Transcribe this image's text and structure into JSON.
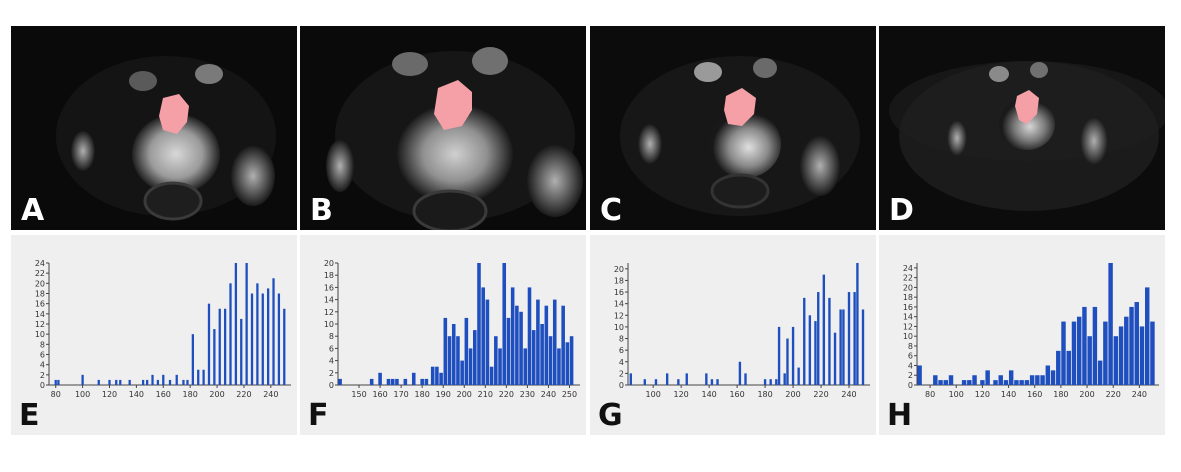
{
  "images": [
    {
      "label": "A"
    },
    {
      "label": "B"
    },
    {
      "label": "C"
    },
    {
      "label": "D"
    }
  ],
  "colors": {
    "roi": "#f4a0a6",
    "bar": "#1f4fbf",
    "hist_bg": "#efefef"
  },
  "chart_data": [
    {
      "type": "bar",
      "label": "E",
      "x": [
        80,
        82,
        100,
        112,
        120,
        125,
        128,
        135,
        145,
        148,
        152,
        156,
        160,
        165,
        170,
        175,
        178,
        182,
        186,
        190,
        194,
        198,
        202,
        206,
        210,
        214,
        218,
        222,
        226,
        230,
        234,
        238,
        242,
        246,
        250
      ],
      "values": [
        1,
        1,
        2,
        1,
        1,
        1,
        1,
        1,
        1,
        1,
        2,
        1,
        2,
        1,
        2,
        1,
        1,
        10,
        3,
        3,
        16,
        11,
        15,
        15,
        20,
        24,
        13,
        24,
        18,
        20,
        18,
        19,
        21,
        18,
        15
      ],
      "xticks": [
        "80",
        "100",
        "120",
        "140",
        "160",
        "180",
        "200",
        "220",
        "240"
      ],
      "xlim": [
        75,
        255
      ],
      "yticks": [
        "0",
        "2",
        "4",
        "6",
        "8",
        "10",
        "12",
        "14",
        "16",
        "18",
        "20",
        "22",
        "24"
      ],
      "ylim": [
        0,
        24
      ]
    },
    {
      "type": "bar",
      "label": "F",
      "x": [
        141,
        156,
        160,
        164,
        166,
        168,
        172,
        176,
        180,
        182,
        185,
        187,
        189,
        191,
        193,
        195,
        197,
        199,
        201,
        203,
        205,
        207,
        209,
        211,
        213,
        215,
        217,
        219,
        221,
        223,
        225,
        227,
        229,
        231,
        233,
        235,
        237,
        239,
        241,
        243,
        245,
        247,
        249,
        251
      ],
      "values": [
        1,
        1,
        2,
        1,
        1,
        1,
        1,
        2,
        1,
        1,
        3,
        3,
        2,
        11,
        8,
        10,
        8,
        4,
        11,
        6,
        9,
        20,
        16,
        14,
        3,
        8,
        6,
        20,
        11,
        16,
        13,
        12,
        6,
        16,
        9,
        14,
        10,
        13,
        8,
        14,
        6,
        13,
        7,
        8
      ],
      "xticks": [
        "150",
        "160",
        "170",
        "180",
        "190",
        "200",
        "210",
        "220",
        "230",
        "240",
        "250"
      ],
      "xlim": [
        140,
        255
      ],
      "yticks": [
        "0",
        "2",
        "4",
        "6",
        "8",
        "10",
        "12",
        "14",
        "16",
        "18",
        "20"
      ],
      "ylim": [
        0,
        20
      ]
    },
    {
      "type": "bar",
      "label": "G",
      "x": [
        84,
        94,
        102,
        110,
        118,
        124,
        138,
        142,
        146,
        162,
        166,
        180,
        184,
        188,
        190,
        194,
        196,
        200,
        204,
        208,
        212,
        216,
        218,
        222,
        226,
        230,
        234,
        236,
        240,
        244,
        246,
        250
      ],
      "values": [
        2,
        1,
        1,
        2,
        1,
        2,
        2,
        1,
        1,
        4,
        2,
        1,
        1,
        1,
        10,
        2,
        8,
        10,
        3,
        15,
        12,
        11,
        16,
        19,
        15,
        9,
        13,
        13,
        16,
        16,
        21,
        13
      ],
      "xticks": [
        "100",
        "120",
        "140",
        "160",
        "180",
        "200",
        "220",
        "240"
      ],
      "xlim": [
        82,
        255
      ],
      "yticks": [
        "0",
        "2",
        "4",
        "6",
        "8",
        "10",
        "12",
        "14",
        "16",
        "18",
        "20"
      ],
      "ylim": [
        0,
        21
      ]
    },
    {
      "type": "bar",
      "label": "H",
      "x": [
        72,
        84,
        88,
        92,
        96,
        106,
        110,
        114,
        120,
        124,
        130,
        134,
        138,
        142,
        146,
        150,
        154,
        158,
        162,
        166,
        170,
        174,
        178,
        182,
        186,
        190,
        194,
        198,
        202,
        206,
        210,
        214,
        218,
        222,
        226,
        230,
        234,
        238,
        242,
        246,
        250
      ],
      "values": [
        4,
        2,
        1,
        1,
        2,
        1,
        1,
        2,
        1,
        3,
        1,
        2,
        1,
        3,
        1,
        1,
        1,
        2,
        2,
        2,
        4,
        3,
        7,
        13,
        7,
        13,
        14,
        16,
        10,
        16,
        5,
        13,
        25,
        10,
        12,
        14,
        16,
        17,
        12,
        20,
        13
      ],
      "xticks": [
        "80",
        "100",
        "120",
        "140",
        "160",
        "180",
        "200",
        "220",
        "240"
      ],
      "xlim": [
        70,
        255
      ],
      "yticks": [
        "0",
        "2",
        "4",
        "6",
        "8",
        "10",
        "12",
        "14",
        "16",
        "18",
        "20",
        "22",
        "24"
      ],
      "ylim": [
        0,
        25
      ]
    }
  ]
}
